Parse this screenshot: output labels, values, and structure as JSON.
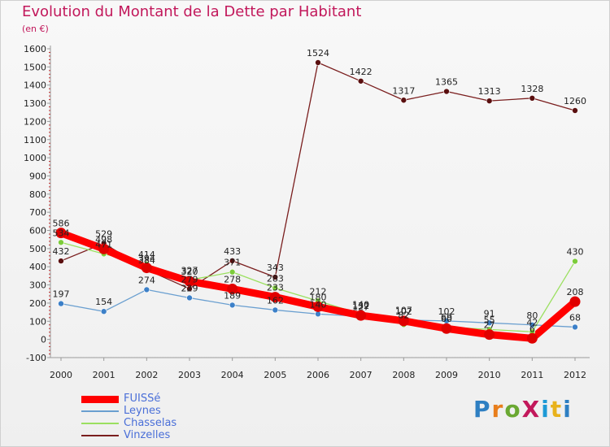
{
  "header": {
    "title": "Evolution du Montant de la Dette par Habitant",
    "unit": "(en €)"
  },
  "brand": {
    "text": "ProXiti",
    "letter_colors": [
      "#2e7fc2",
      "#e87e1c",
      "#6aa832",
      "#c2185b",
      "#1e9ad6",
      "#e8b21c",
      "#2e7fc2"
    ]
  },
  "chart_data": {
    "type": "line",
    "title": "Evolution du Montant de la Dette par Habitant",
    "ylabel": "(en €)",
    "xlabel": "",
    "ylim": [
      -100,
      1600
    ],
    "yticks": [
      -100,
      0,
      100,
      200,
      300,
      400,
      500,
      600,
      700,
      800,
      900,
      1000,
      1100,
      1200,
      1300,
      1400,
      1500,
      1600
    ],
    "categories": [
      "2000",
      "2001",
      "2002",
      "2003",
      "2004",
      "2005",
      "2006",
      "2007",
      "2008",
      "2009",
      "2010",
      "2011",
      "2012"
    ],
    "grid": false,
    "legend_position": "bottom-left",
    "series": [
      {
        "name": "Vinzelles",
        "color": "#7a1e1e",
        "marker": "#5a0f0f",
        "values": [
          432,
          529,
          384,
          279,
          433,
          343,
          1524,
          1422,
          1317,
          1365,
          1313,
          1328,
          1260
        ]
      },
      {
        "name": "Chasselas",
        "color": "#9be060",
        "marker": "#7ccc3a",
        "values": [
          534,
          471,
          414,
          327,
          371,
          283,
          212,
          140,
          82,
          69,
          55,
          42,
          430
        ]
      },
      {
        "name": "Leynes",
        "color": "#6a9fd0",
        "marker": "#3c80c8",
        "values": [
          197,
          154,
          274,
          229,
          189,
          162,
          140,
          127,
          107,
          102,
          91,
          80,
          68
        ]
      },
      {
        "name": "FUISSé",
        "color": "#ff0000",
        "marker": "#e00000",
        "values": [
          586,
          498,
          394,
          320,
          278,
          233,
          180,
          132,
          102,
          60,
          27,
          6,
          208
        ]
      }
    ]
  }
}
